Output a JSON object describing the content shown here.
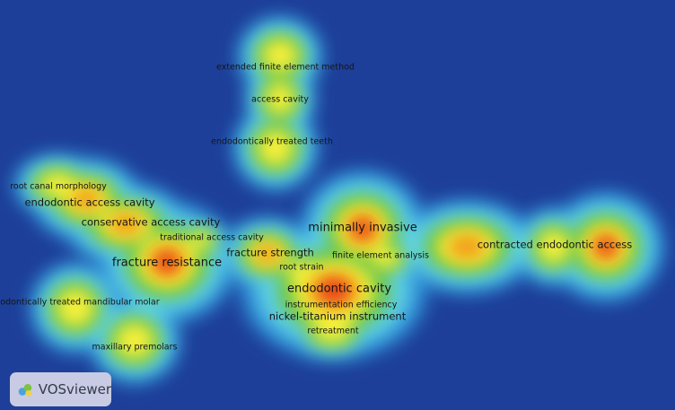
{
  "app": {
    "logo_text": "VOSviewer"
  },
  "density": {
    "background": "#1e3f99",
    "palette": [
      "#1e3f99",
      "#2a8bd6",
      "#5fd3e8",
      "#63c34a",
      "#f4ef3a",
      "#f29a18",
      "#e8331a"
    ]
  },
  "terms": [
    {
      "id": "extended-finite-element-method",
      "label": "extended finite element method",
      "weight": 0.55,
      "size": "small"
    },
    {
      "id": "access-cavity",
      "label": "access cavity",
      "weight": 0.5,
      "size": "small"
    },
    {
      "id": "endodontically-treated-teeth",
      "label": "endodontically treated teeth",
      "weight": 0.55,
      "size": "small"
    },
    {
      "id": "root-canal-morphology",
      "label": "root canal morphology",
      "weight": 0.4,
      "size": "small"
    },
    {
      "id": "endodontic-access-cavity",
      "label": "endodontic access cavity",
      "weight": 0.7,
      "size": "medium"
    },
    {
      "id": "conservative-access-cavity",
      "label": "conservative access cavity",
      "weight": 0.7,
      "size": "medium"
    },
    {
      "id": "traditional-access-cavity",
      "label": "traditional access cavity",
      "weight": 0.45,
      "size": "small"
    },
    {
      "id": "fracture-resistance",
      "label": "fracture resistance",
      "weight": 1.0,
      "size": "large"
    },
    {
      "id": "fracture-strength",
      "label": "fracture strength",
      "weight": 0.6,
      "size": "medium"
    },
    {
      "id": "minimally-invasive",
      "label": "minimally invasive",
      "weight": 0.85,
      "size": "large"
    },
    {
      "id": "finite-element-analysis",
      "label": "finite element analysis",
      "weight": 0.45,
      "size": "small"
    },
    {
      "id": "root-strain",
      "label": "root strain",
      "weight": 0.4,
      "size": "small"
    },
    {
      "id": "endodontic-cavity",
      "label": "endodontic cavity",
      "weight": 1.0,
      "size": "large"
    },
    {
      "id": "instrumentation-efficiency",
      "label": "instrumentation efficiency",
      "weight": 0.45,
      "size": "small"
    },
    {
      "id": "nickel-titanium-instrument",
      "label": "nickel-titanium instrument",
      "weight": 0.5,
      "size": "medium"
    },
    {
      "id": "retreatment",
      "label": "retreatment",
      "weight": 0.4,
      "size": "small"
    },
    {
      "id": "contracted-endodontic-access",
      "label": "contracted endodontic access",
      "weight": 0.85,
      "size": "medium"
    },
    {
      "id": "endodontically-treated-mandibular-molar",
      "label": "odontically treated mandibular molar",
      "weight": 0.5,
      "size": "small"
    },
    {
      "id": "maxillary-premolars",
      "label": "maxillary premolars",
      "weight": 0.55,
      "size": "small"
    }
  ]
}
